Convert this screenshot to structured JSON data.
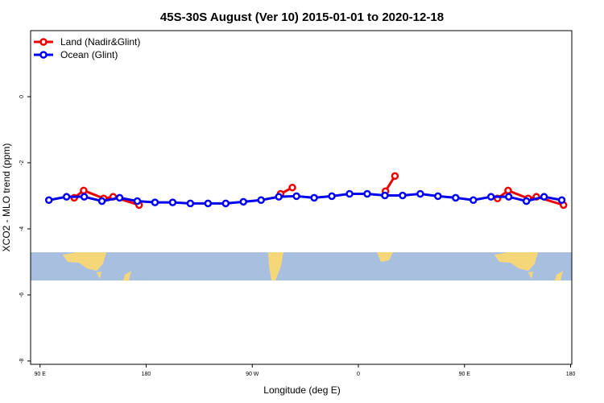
{
  "chart_data": {
    "type": "line",
    "title": "45S-30S August (Ver 10)   2015-01-01 to 2020-12-18",
    "x_label": "Longitude (deg E)",
    "y_label": "XCO2 - MLO trend (ppm)",
    "xlim": [
      82,
      541
    ],
    "ylim": [
      -8.1,
      2
    ],
    "xticks": [
      {
        "value": 90,
        "label": "90 E"
      },
      180,
      {
        "value": 270,
        "label": "90 W"
      },
      {
        "value": 360,
        "label": "0"
      },
      {
        "value": 450,
        "label": "90 E"
      },
      {
        "value": 540,
        "label": "180"
      }
    ],
    "yticks": [
      0,
      -2,
      -4,
      -6,
      -8
    ],
    "legend": "top-left",
    "series": [
      {
        "name": "Land (Nadir&Glint)",
        "color": "#ee0000",
        "x": [
          119,
          127,
          144,
          152,
          174,
          null,
          294,
          304,
          null,
          383,
          391,
          null,
          478,
          487,
          504,
          511,
          534
        ],
        "values": [
          -3.06,
          -2.84,
          -3.08,
          -3.03,
          -3.28,
          null,
          -2.94,
          -2.75,
          null,
          -2.86,
          -2.4,
          null,
          -3.08,
          -2.84,
          -3.08,
          -3.03,
          -3.28
        ]
      },
      {
        "name": "Ocean (Glint)",
        "color": "#0000ee",
        "x": [
          97.5,
          112.5,
          127.5,
          142.5,
          157.5,
          172.5,
          187.5,
          202.5,
          217.5,
          232.5,
          247.5,
          262.5,
          277.5,
          292.5,
          307.5,
          322.5,
          337.5,
          352.5,
          367.5,
          382.5,
          397.5,
          412.5,
          427.5,
          442.5,
          457.5,
          472.5,
          487.5,
          502.5,
          517.5,
          532.5
        ],
        "values": [
          -3.13,
          -3.03,
          -3.03,
          -3.16,
          -3.06,
          -3.16,
          -3.2,
          -3.2,
          -3.23,
          -3.23,
          -3.23,
          -3.18,
          -3.13,
          -3.03,
          -3.01,
          -3.06,
          -3.01,
          -2.94,
          -2.94,
          -2.99,
          -2.99,
          -2.94,
          -3.01,
          -3.06,
          -3.13,
          -3.03,
          -3.03,
          -3.16,
          -3.03,
          -3.13
        ]
      }
    ]
  }
}
